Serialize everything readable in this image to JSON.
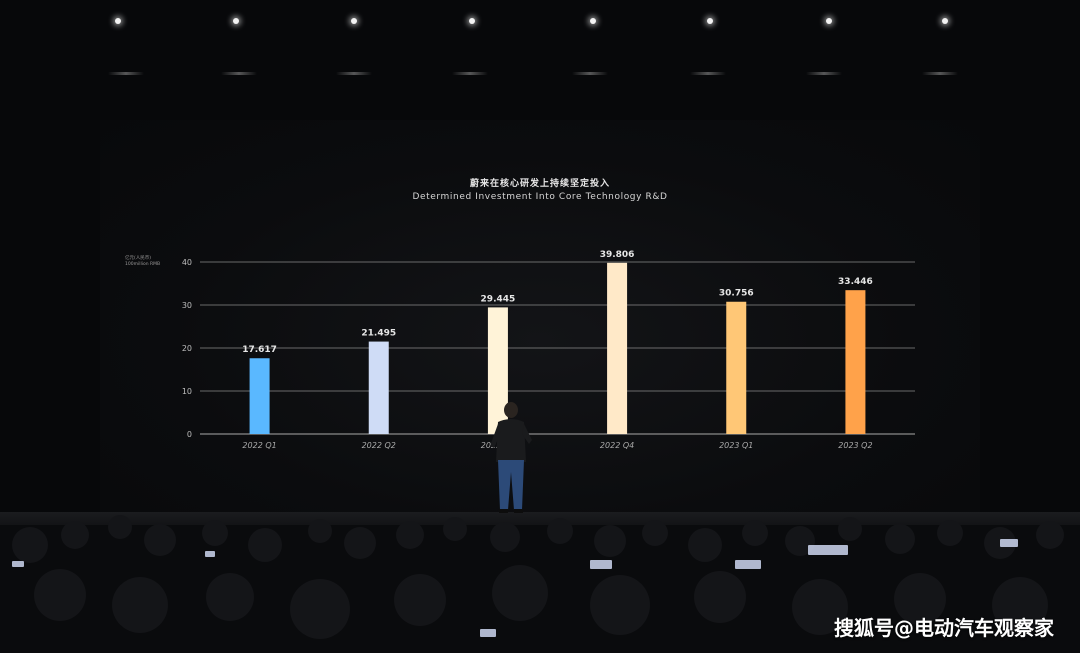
{
  "slide": {
    "title_cn": "蔚来在核心研发上持续坚定投入",
    "title_en": "Determined Investment Into Core Technology R&D",
    "unit_label_line1": "亿元(人民币)",
    "unit_label_line2": "100million RMB"
  },
  "chart_data": {
    "type": "bar",
    "title": "Determined Investment Into Core Technology R&D",
    "categories": [
      "2022 Q1",
      "2022 Q2",
      "2022 Q3",
      "2022 Q4",
      "2023 Q1",
      "2023 Q2"
    ],
    "values": [
      17.617,
      21.495,
      29.445,
      39.806,
      30.756,
      33.446
    ],
    "value_labels": [
      "17.617",
      "21.495",
      "29.445",
      "39.806",
      "30.756",
      "33.446"
    ],
    "yticks": [
      "0",
      "10",
      "20",
      "30",
      "40"
    ],
    "ylim": [
      0,
      40
    ],
    "grid": true,
    "legend": "none",
    "bar_colors": [
      "#5ab8ff",
      "#cfdcf6",
      "#fff3d8",
      "#ffe9c8",
      "#ffc776",
      "#ffa24a"
    ]
  },
  "colors": {
    "background": "#07080a",
    "gridline": "#8a8a8a",
    "text": "#e6e6e6"
  },
  "watermark": {
    "text": "搜狐号@电动汽车观察家"
  }
}
